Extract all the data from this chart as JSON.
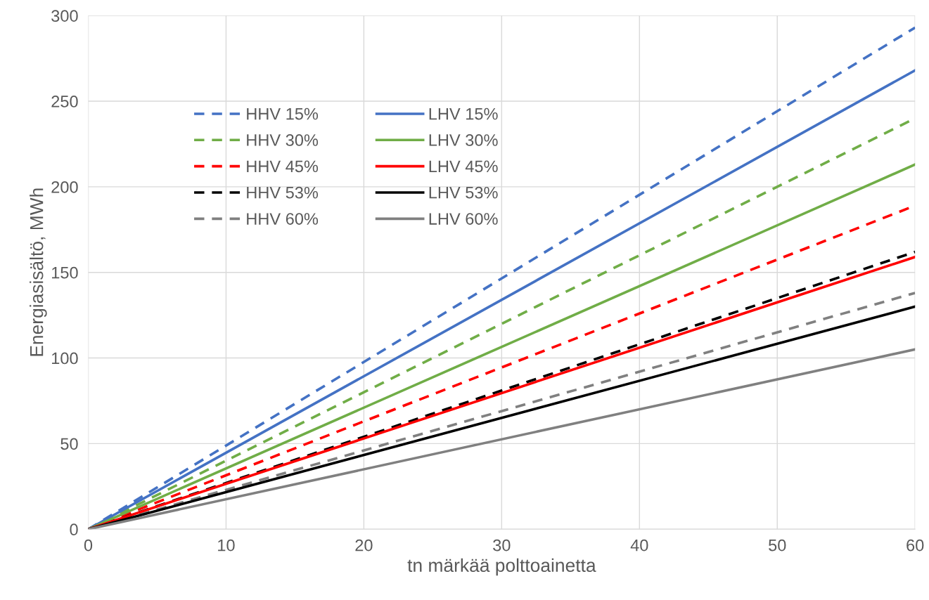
{
  "chart_data": {
    "type": "line",
    "xlabel": "tn märkää polttoainetta",
    "ylabel": "Energiasisältö, MWh",
    "x": [
      0,
      60
    ],
    "xlim": [
      0,
      60
    ],
    "xticks": [
      0,
      10,
      20,
      30,
      40,
      50,
      60
    ],
    "ylim": [
      0,
      300
    ],
    "yticks": [
      0,
      50,
      100,
      150,
      200,
      250,
      300
    ],
    "grid": true,
    "legend": "top left",
    "marker": "none",
    "series": [
      {
        "name": "HHV 15%",
        "color": "#4472c4",
        "line_style": "dashed",
        "values": [
          0,
          293
        ]
      },
      {
        "name": "HHV 30%",
        "color": "#70ad47",
        "line_style": "dashed",
        "values": [
          0,
          240
        ]
      },
      {
        "name": "HHV 45%",
        "color": "#ff0000",
        "line_style": "dashed",
        "values": [
          0,
          189
        ]
      },
      {
        "name": "HHV 53%",
        "color": "#000000",
        "line_style": "dashed",
        "values": [
          0,
          162
        ]
      },
      {
        "name": "HHV 60%",
        "color": "#808080",
        "line_style": "dashed",
        "values": [
          0,
          138
        ]
      },
      {
        "name": "LHV 15%",
        "color": "#4472c4",
        "line_style": "solid",
        "values": [
          0,
          268
        ]
      },
      {
        "name": "LHV 30%",
        "color": "#70ad47",
        "line_style": "solid",
        "values": [
          0,
          213
        ]
      },
      {
        "name": "LHV 45%",
        "color": "#ff0000",
        "line_style": "solid",
        "values": [
          0,
          159
        ]
      },
      {
        "name": "LHV 53%",
        "color": "#000000",
        "line_style": "solid",
        "values": [
          0,
          130
        ]
      },
      {
        "name": "LHV 60%",
        "color": "#808080",
        "line_style": "solid",
        "values": [
          0,
          105
        ]
      }
    ]
  }
}
